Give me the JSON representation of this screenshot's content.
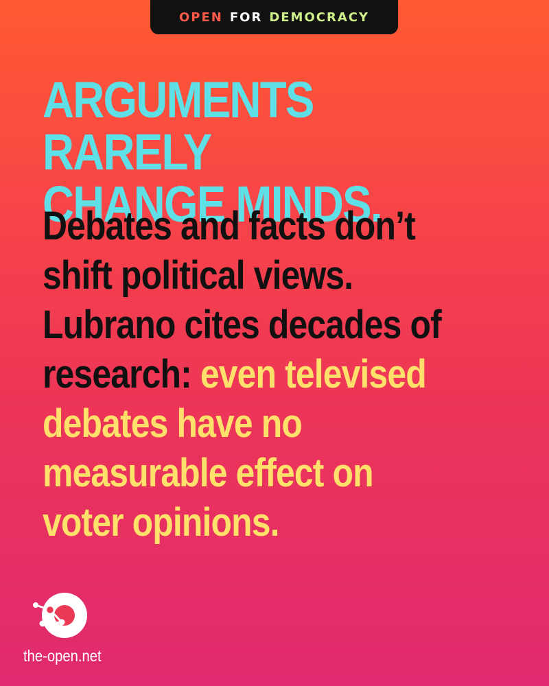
{
  "badge": {
    "word1": "OPEN",
    "word2": "FOR",
    "word3": "DEMOCRACY"
  },
  "headline": {
    "line1": "ARGUMENTS RARELY",
    "line2": "CHANGE MINDS."
  },
  "body": {
    "line1": "Debates and facts don’t",
    "line2": "shift political views.",
    "line3": "Lubrano cites decades of",
    "line4_plain": "research: ",
    "line4_highlight": "even televised",
    "line5": "debates have no",
    "line6": "measurable effect on",
    "line7": "voter opinions."
  },
  "footer": {
    "logo_icon": "the-open-logo-icon",
    "site": "the-open.net"
  },
  "colors": {
    "background_top": "#ff5a32",
    "background_bottom": "#e0296f",
    "badge_bg": "#111111",
    "badge_open": "#ff5a4a",
    "badge_for": "#ffffff",
    "badge_democracy": "#cff08a",
    "headline": "#5ee0e6",
    "body": "#111111",
    "highlight": "#ffe06a",
    "footer": "#ffffff"
  }
}
